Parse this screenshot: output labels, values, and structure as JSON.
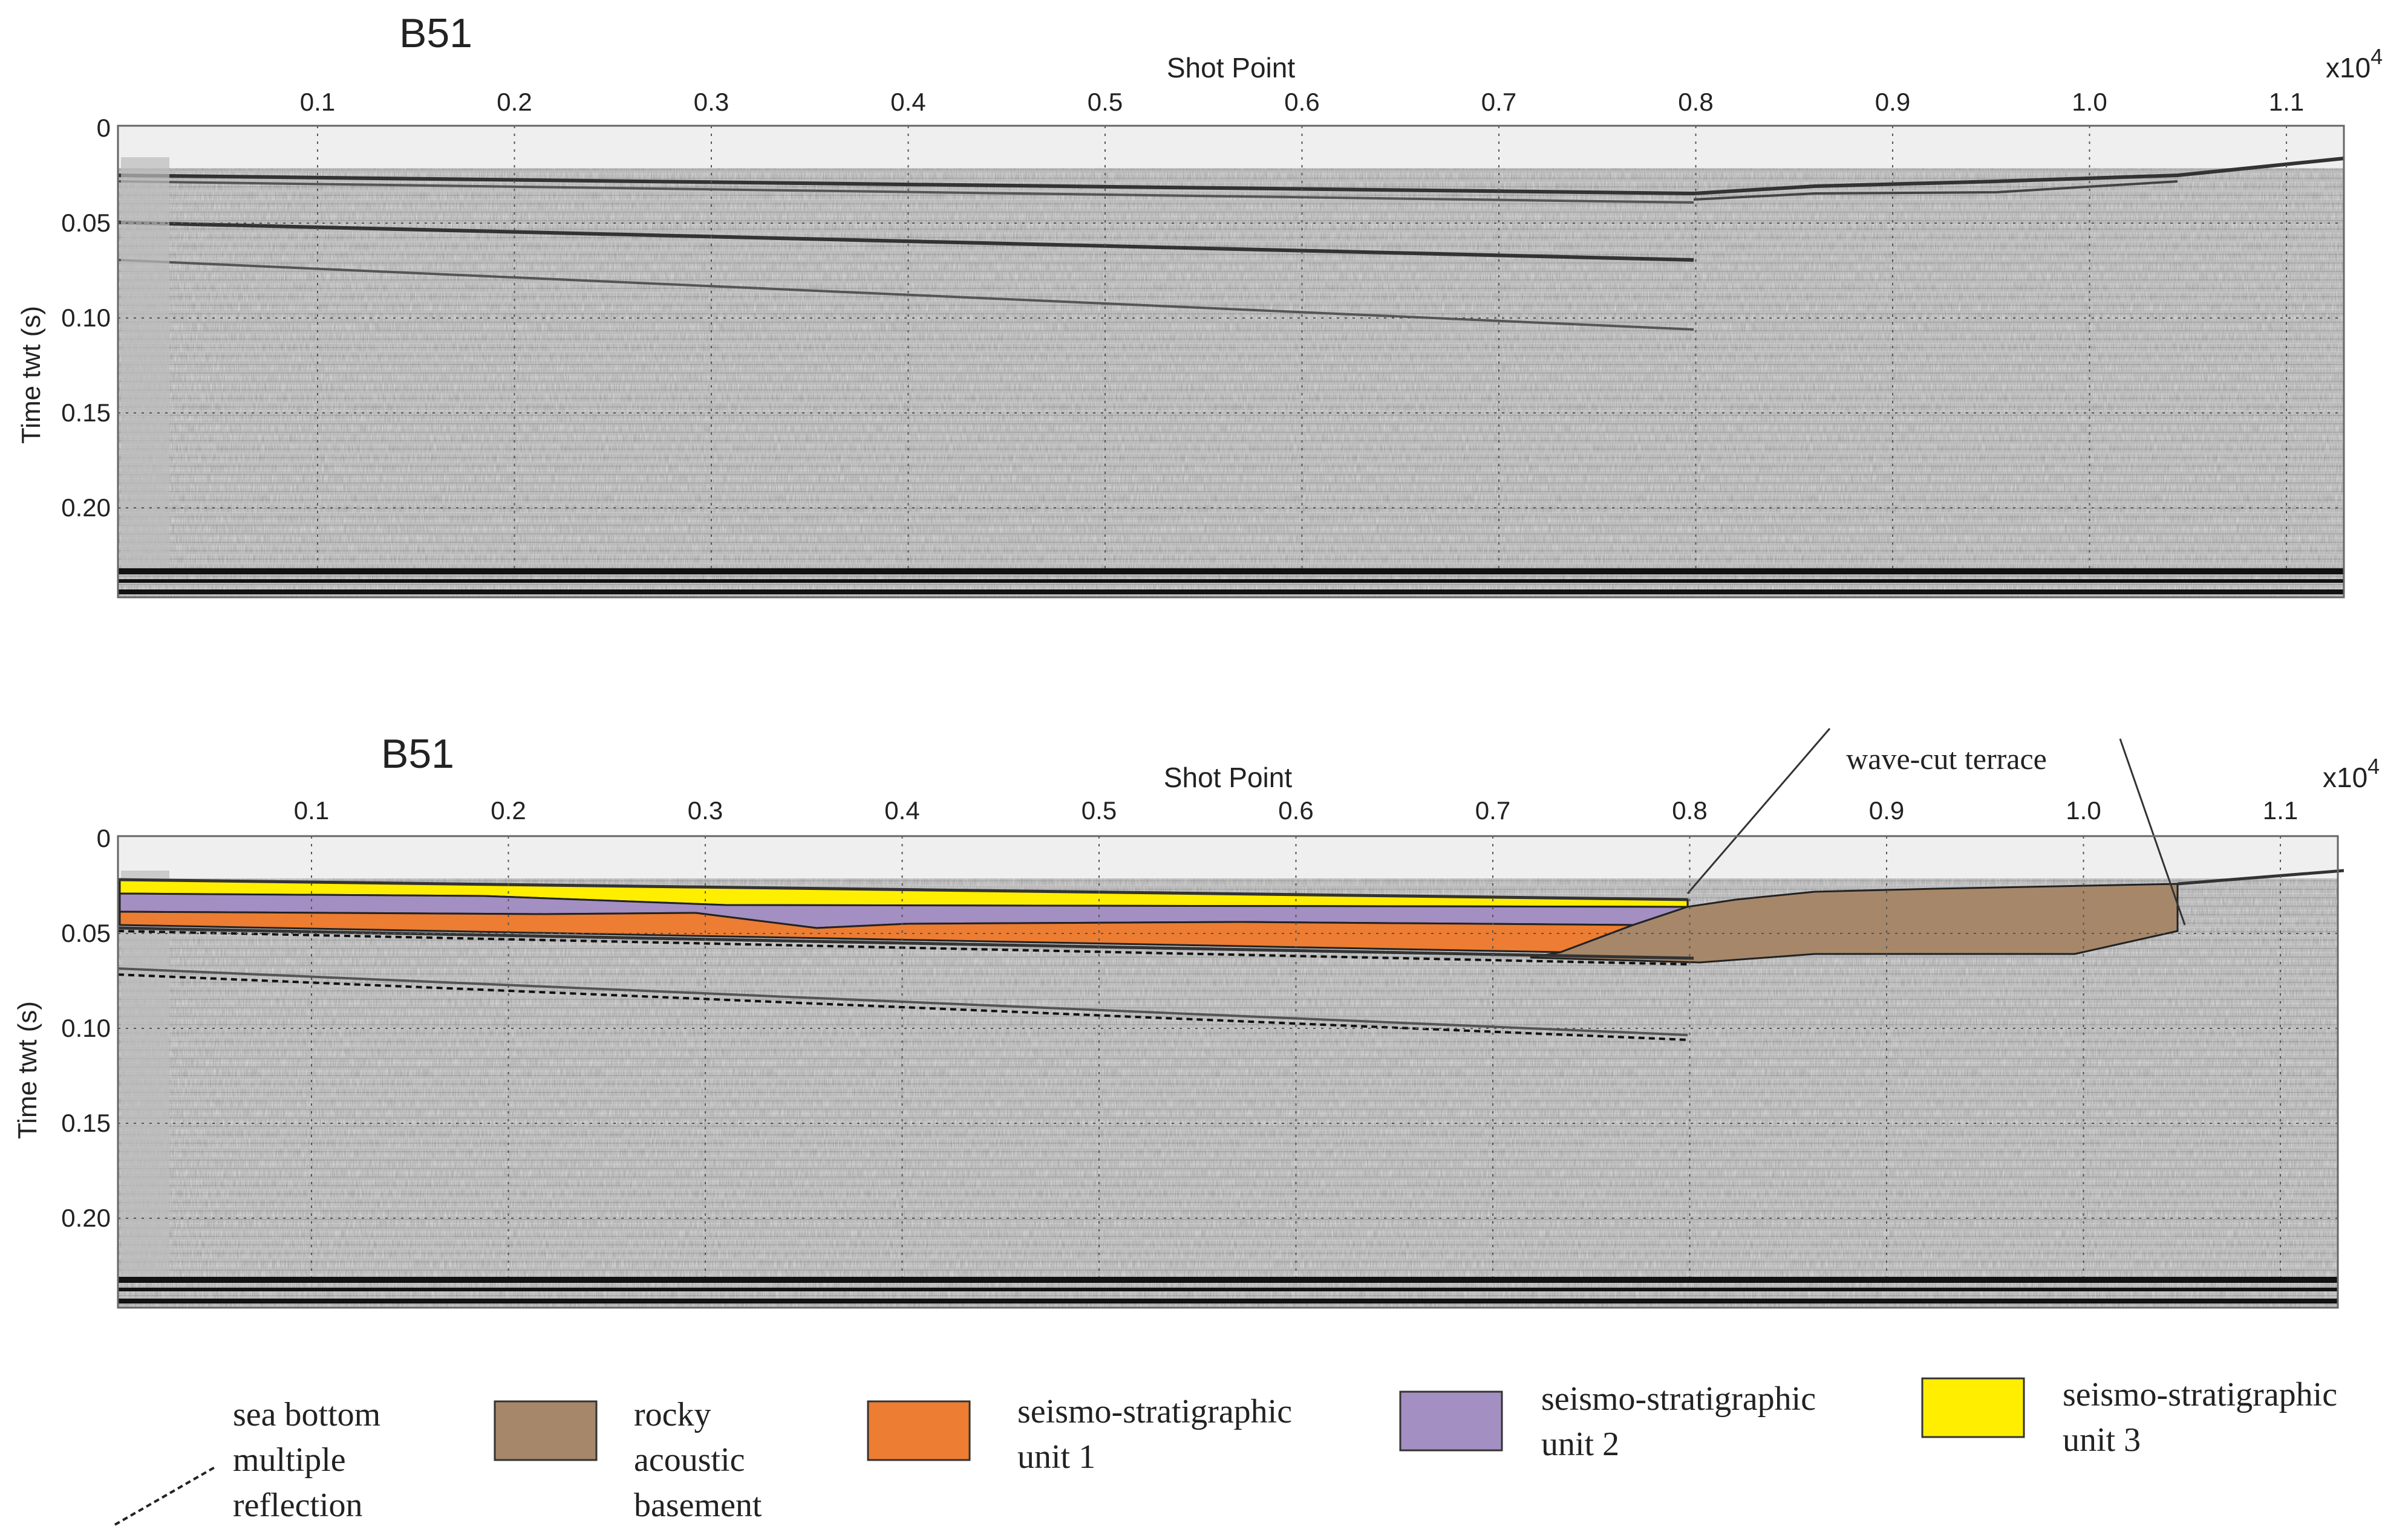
{
  "panels": [
    {
      "title": "B51",
      "x_axis_label": "Shot Point",
      "x_multiplier": "x10",
      "x_multiplier_exp": "4",
      "y_axis_label": "Time twt (s)",
      "x_ticks": [
        "0.1",
        "0.2",
        "0.3",
        "0.4",
        "0.5",
        "0.6",
        "0.7",
        "0.8",
        "0.9",
        "1.0",
        "1.1"
      ],
      "y_ticks": [
        "0",
        "0.05",
        "0.10",
        "0.15",
        "0.20"
      ]
    },
    {
      "title": "B51",
      "x_axis_label": "Shot Point",
      "x_multiplier": "x10",
      "x_multiplier_exp": "4",
      "y_axis_label": "Time twt (s)",
      "x_ticks": [
        "0.1",
        "0.2",
        "0.3",
        "0.4",
        "0.5",
        "0.6",
        "0.7",
        "0.8",
        "0.9",
        "1.0",
        "1.1"
      ],
      "y_ticks": [
        "0",
        "0.05",
        "0.10",
        "0.15",
        "0.20"
      ],
      "annotation": "wave-cut terrace"
    }
  ],
  "legend": {
    "items": [
      {
        "line1": "sea bottom",
        "line2": "multiple",
        "line3": "reflection",
        "kind": "dashed-line"
      },
      {
        "line1": "rocky",
        "line2": "acoustic",
        "line3": "basement",
        "kind": "swatch",
        "color": "#a6876a"
      },
      {
        "line1": "seismo-stratigraphic",
        "line2": "unit 1",
        "line3": "",
        "kind": "swatch",
        "color": "#ec7d32"
      },
      {
        "line1": "seismo-stratigraphic",
        "line2": "unit 2",
        "line3": "",
        "kind": "swatch",
        "color": "#a38fc2"
      },
      {
        "line1": "seismo-stratigraphic",
        "line2": "unit 3",
        "line3": "",
        "kind": "swatch",
        "color": "#ffee00"
      }
    ]
  },
  "colors": {
    "basement": "#a6876a",
    "unit1": "#ec7d32",
    "unit2": "#a38fc2",
    "unit3": "#ffee00",
    "seismic_background": "#dcdcdc"
  }
}
